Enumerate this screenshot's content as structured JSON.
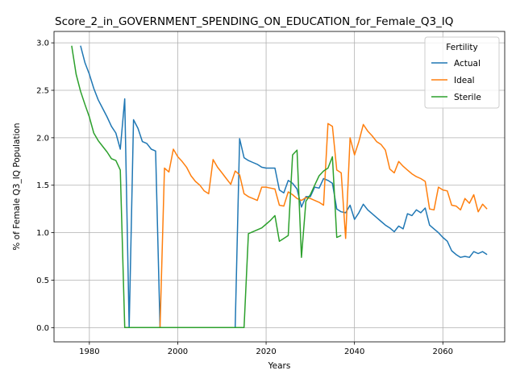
{
  "chart_data": {
    "type": "line",
    "title": "Score_2_in_GOVERNMENT_SPENDING_ON_EDUCATION_for_Female_Q3_IQ",
    "xlabel": "Years",
    "ylabel": "% of Female Q3_IQ Population",
    "xlim": [
      1972,
      2074
    ],
    "ylim": [
      -0.15,
      3.12
    ],
    "xticks": [
      1980,
      2000,
      2020,
      2040,
      2060
    ],
    "yticks": [
      0.0,
      0.5,
      1.0,
      1.5,
      2.0,
      2.5,
      3.0
    ],
    "xtick_labels": [
      "1980",
      "2000",
      "2020",
      "2040",
      "2060"
    ],
    "ytick_labels": [
      "0.0",
      "0.5",
      "1.0",
      "1.5",
      "2.0",
      "2.5",
      "3.0"
    ],
    "grid": true,
    "legend": {
      "title": "Fertility",
      "position": "top-right"
    },
    "series": [
      {
        "name": "Actual",
        "color": "#1f77b4",
        "x": [
          1978,
          1979,
          1980,
          1981,
          1982,
          1983,
          1984,
          1985,
          1986,
          1987,
          1988,
          1989,
          1990,
          1991,
          1992,
          1993,
          1994,
          1995,
          1996,
          1997,
          1998,
          1999,
          2000,
          2001,
          2002,
          2003,
          2004,
          2005,
          2006,
          2007,
          2008,
          2009,
          2010,
          2011,
          2012,
          2013,
          2014,
          2015,
          2016,
          2017,
          2018,
          2019,
          2020,
          2021,
          2022,
          2023,
          2024,
          2025,
          2026,
          2027,
          2028,
          2029,
          2030,
          2031,
          2032,
          2033,
          2034,
          2035,
          2036,
          2037,
          2038,
          2039,
          2040,
          2041,
          2042,
          2043,
          2044,
          2045,
          2046,
          2047,
          2048,
          2049,
          2050,
          2051,
          2052,
          2053,
          2054,
          2055,
          2056,
          2057,
          2058,
          2059,
          2060,
          2061,
          2062,
          2063,
          2064,
          2065,
          2066,
          2067,
          2068,
          2069,
          2070
        ],
        "y": [
          2.97,
          2.79,
          2.67,
          2.52,
          2.4,
          2.31,
          2.22,
          2.12,
          2.05,
          1.88,
          2.41,
          0.0,
          2.19,
          2.1,
          1.96,
          1.94,
          1.88,
          1.86,
          0.0,
          0.0,
          0.0,
          0.0,
          0.0,
          0.0,
          0.0,
          0.0,
          0.0,
          0.0,
          0.0,
          0.0,
          0.0,
          0.0,
          0.0,
          0.0,
          0.0,
          0.0,
          1.99,
          1.79,
          1.76,
          1.74,
          1.72,
          1.69,
          1.68,
          1.68,
          1.68,
          1.45,
          1.42,
          1.55,
          1.52,
          1.46,
          1.27,
          1.38,
          1.38,
          1.48,
          1.47,
          1.57,
          1.55,
          1.52,
          1.25,
          1.22,
          1.21,
          1.29,
          1.14,
          1.21,
          1.3,
          1.24,
          1.2,
          1.16,
          1.12,
          1.08,
          1.05,
          1.01,
          1.07,
          1.04,
          1.2,
          1.18,
          1.24,
          1.21,
          1.26,
          1.08,
          1.04,
          1.0,
          0.95,
          0.91,
          0.81,
          0.77,
          0.74,
          0.75,
          0.74,
          0.8,
          0.78,
          0.8,
          0.77
        ]
      },
      {
        "name": "Ideal",
        "color": "#ff7f0e",
        "x": [
          1996,
          1997,
          1998,
          1999,
          2000,
          2001,
          2002,
          2003,
          2004,
          2005,
          2006,
          2007,
          2008,
          2009,
          2010,
          2011,
          2012,
          2013,
          2014,
          2015,
          2016,
          2017,
          2018,
          2019,
          2020,
          2021,
          2022,
          2023,
          2024,
          2025,
          2026,
          2027,
          2028,
          2029,
          2030,
          2031,
          2032,
          2033,
          2034,
          2035,
          2036,
          2037,
          2038,
          2039,
          2040,
          2041,
          2042,
          2043,
          2044,
          2045,
          2046,
          2047,
          2048,
          2049,
          2050,
          2051,
          2052,
          2053,
          2054,
          2055,
          2056,
          2057,
          2058,
          2059,
          2060,
          2061,
          2062,
          2063,
          2064,
          2065,
          2066,
          2067,
          2068,
          2069,
          2070
        ],
        "y": [
          0.0,
          1.68,
          1.64,
          1.88,
          1.8,
          1.75,
          1.69,
          1.6,
          1.54,
          1.5,
          1.44,
          1.41,
          1.77,
          1.69,
          1.63,
          1.57,
          1.51,
          1.65,
          1.61,
          1.41,
          1.38,
          1.36,
          1.34,
          1.48,
          1.48,
          1.47,
          1.46,
          1.29,
          1.28,
          1.43,
          1.4,
          1.36,
          1.34,
          1.37,
          1.36,
          1.34,
          1.32,
          1.29,
          2.15,
          2.12,
          1.66,
          1.63,
          0.94,
          2.0,
          1.82,
          1.96,
          2.14,
          2.07,
          2.02,
          1.96,
          1.93,
          1.87,
          1.67,
          1.63,
          1.75,
          1.7,
          1.66,
          1.62,
          1.59,
          1.57,
          1.54,
          1.25,
          1.24,
          1.48,
          1.45,
          1.44,
          1.29,
          1.28,
          1.24,
          1.36,
          1.31,
          1.4,
          1.22,
          1.3,
          1.25
        ]
      },
      {
        "name": "Sterile",
        "color": "#2ca02c",
        "x": [
          1976,
          1977,
          1978,
          1979,
          1980,
          1981,
          1982,
          1983,
          1984,
          1985,
          1986,
          1987,
          1988,
          1989,
          1990,
          1991,
          1992,
          1993,
          1994,
          1995,
          1996,
          1997,
          1998,
          1999,
          2000,
          2001,
          2002,
          2003,
          2004,
          2005,
          2006,
          2007,
          2008,
          2009,
          2010,
          2011,
          2012,
          2013,
          2014,
          2015,
          2016,
          2017,
          2018,
          2019,
          2020,
          2021,
          2022,
          2023,
          2024,
          2025,
          2026,
          2027,
          2028,
          2029,
          2030,
          2031,
          2032,
          2033,
          2034,
          2035,
          2036,
          2037
        ],
        "y": [
          2.97,
          2.67,
          2.49,
          2.35,
          2.22,
          2.05,
          1.97,
          1.91,
          1.85,
          1.78,
          1.76,
          1.66,
          0.0,
          0.0,
          0.0,
          0.0,
          0.0,
          0.0,
          0.0,
          0.0,
          0.0,
          0.0,
          0.0,
          0.0,
          0.0,
          0.0,
          0.0,
          0.0,
          0.0,
          0.0,
          0.0,
          0.0,
          0.0,
          0.0,
          0.0,
          0.0,
          0.0,
          0.0,
          0.0,
          0.0,
          0.99,
          1.01,
          1.03,
          1.05,
          1.09,
          1.13,
          1.18,
          0.91,
          0.94,
          0.97,
          1.82,
          1.87,
          0.74,
          1.33,
          1.4,
          1.5,
          1.6,
          1.65,
          1.68,
          1.8,
          0.95,
          0.97
        ]
      }
    ]
  }
}
